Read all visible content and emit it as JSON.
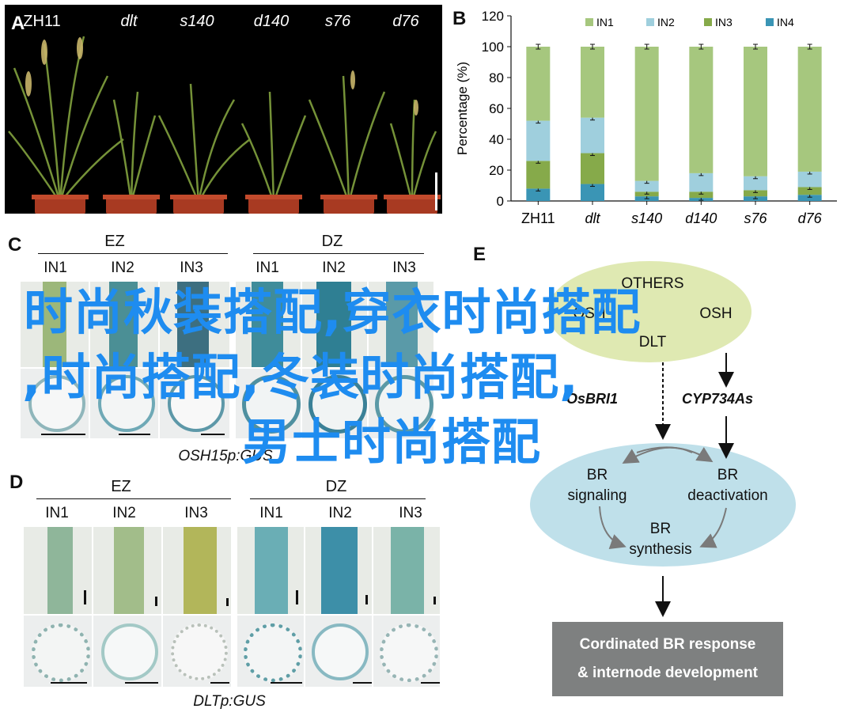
{
  "panels": {
    "a": {
      "letter": "A",
      "plants": [
        "ZH11",
        "dlt",
        "s140",
        "d140",
        "s76",
        "d76"
      ]
    },
    "b": {
      "letter": "B"
    },
    "c": {
      "letter": "C",
      "groups": [
        "EZ",
        "DZ"
      ],
      "columns": [
        "IN1",
        "IN2",
        "IN3",
        "IN1",
        "IN2",
        "IN3"
      ],
      "caption": "OSH15p:GUS"
    },
    "d": {
      "letter": "D",
      "groups": [
        "EZ",
        "DZ"
      ],
      "columns": [
        "IN1",
        "IN2",
        "IN3",
        "IN1",
        "IN2",
        "IN3"
      ],
      "caption": "DLTp:GUS"
    },
    "e": {
      "letter": "E",
      "top_nodes": [
        "OTHERS",
        "OSH",
        "OSH",
        "DLT"
      ],
      "genes": [
        "OsBRI1",
        "CYP734As"
      ],
      "br_signaling": [
        "BR",
        "signaling"
      ],
      "br_deactivation": [
        "BR",
        "deactivation"
      ],
      "br_synthesis": [
        "BR",
        "synthesis"
      ],
      "output_box": [
        "Cordinated BR response",
        "& internode development"
      ]
    }
  },
  "chart_data": {
    "type": "bar",
    "stacked": true,
    "categories": [
      "ZH11",
      "dlt",
      "s140",
      "d140",
      "s76",
      "d76"
    ],
    "series": [
      {
        "name": "IN4",
        "color": "#3a95b5",
        "values": [
          8,
          11,
          3,
          2,
          3,
          4
        ]
      },
      {
        "name": "IN3",
        "color": "#86aa4a",
        "values": [
          18,
          20,
          3,
          4,
          4,
          5
        ]
      },
      {
        "name": "IN2",
        "color": "#9fcfdd",
        "values": [
          26,
          23,
          7,
          12,
          9,
          10
        ]
      },
      {
        "name": "IN1",
        "color": "#a6c77e",
        "values": [
          48,
          46,
          87,
          82,
          84,
          81
        ]
      }
    ],
    "ylabel": "Percentage (%)",
    "ylim": [
      0,
      120
    ],
    "yticks": [
      0,
      20,
      40,
      60,
      80,
      100,
      120
    ],
    "legend_order": [
      "IN1",
      "IN2",
      "IN3",
      "IN4"
    ],
    "legend_position": "top"
  },
  "watermark": {
    "line1": "时尚秋装搭配,穿衣时尚搭配",
    "line2": ",时尚搭配,冬装时尚搭配,",
    "line3": "男士时尚搭配"
  }
}
